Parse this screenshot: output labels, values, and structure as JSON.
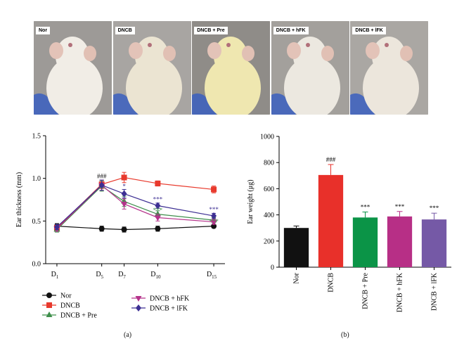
{
  "photos": [
    {
      "label": "Nor",
      "bg": "#9d9a97",
      "fur": "#f1ede6"
    },
    {
      "label": "DNCB",
      "bg": "#a8a5a2",
      "fur": "#ebe4d2"
    },
    {
      "label": "DNCB + Pre",
      "bg": "#8f8c88",
      "fur": "#efe7b0"
    },
    {
      "label": "DNCB + hFK",
      "bg": "#a3a09c",
      "fur": "#ece8e0"
    },
    {
      "label": "DNCB + lFK",
      "bg": "#aaa7a3",
      "fur": "#ece6dc"
    }
  ],
  "chart_data": [
    {
      "type": "line",
      "panel": "(a)",
      "xlabel": "",
      "ylabel": "Ear thickness (mm)",
      "ylim": [
        0.0,
        1.5
      ],
      "yticks": [
        "0.0",
        "0.5",
        "1.0",
        "1.5"
      ],
      "x": [
        1,
        5,
        7,
        10,
        15
      ],
      "xticks": [
        {
          "main": "D",
          "sub": "1"
        },
        {
          "main": "D",
          "sub": "5"
        },
        {
          "main": "D",
          "sub": "7"
        },
        {
          "main": "D",
          "sub": "10"
        },
        {
          "main": "D",
          "sub": "15"
        }
      ],
      "series": [
        {
          "name": "Nor",
          "color": "#111111",
          "marker": "circle",
          "values": [
            0.44,
            0.41,
            0.4,
            0.41,
            0.44
          ],
          "err": [
            0.03,
            0.03,
            0.03,
            0.03,
            0.02
          ]
        },
        {
          "name": "DNCB",
          "color": "#e8392c",
          "marker": "square",
          "values": [
            0.42,
            0.93,
            1.01,
            0.94,
            0.87
          ],
          "err": [
            0.03,
            0.05,
            0.06,
            0.03,
            0.04
          ]
        },
        {
          "name": "DNCB + Pre",
          "color": "#3f8f4c",
          "marker": "triangle-up",
          "values": [
            0.4,
            0.91,
            0.73,
            0.58,
            0.51
          ],
          "err": [
            0.03,
            0.06,
            0.06,
            0.04,
            0.03
          ]
        },
        {
          "name": "DNCB + hFK",
          "color": "#b5338b",
          "marker": "triangle-down",
          "values": [
            0.41,
            0.92,
            0.7,
            0.54,
            0.49
          ],
          "err": [
            0.03,
            0.06,
            0.06,
            0.04,
            0.03
          ]
        },
        {
          "name": "DNCB + lFK",
          "color": "#3d2f93",
          "marker": "diamond",
          "values": [
            0.43,
            0.92,
            0.82,
            0.68,
            0.56
          ],
          "err": [
            0.03,
            0.06,
            0.05,
            0.03,
            0.03
          ]
        }
      ],
      "annotations": [
        {
          "x": 5,
          "y": 1.0,
          "text": "###",
          "color": "#111111"
        },
        {
          "x": 7,
          "y": 0.88,
          "text": "*",
          "color": "#3d2f93"
        },
        {
          "x": 10,
          "y": 0.73,
          "text": "***",
          "color": "#3d2f93"
        },
        {
          "x": 10,
          "y": 0.6,
          "text": "***",
          "color": "#3f8f4c"
        },
        {
          "x": 15,
          "y": 0.61,
          "text": "***",
          "color": "#3d2f93"
        },
        {
          "x": 15,
          "y": 0.47,
          "text": "***",
          "color": "#3f8f4c"
        }
      ]
    },
    {
      "type": "bar",
      "panel": "(b)",
      "ylabel": "Ear weight (μg)",
      "ylim": [
        0,
        1000
      ],
      "yticks": [
        "0",
        "200",
        "400",
        "600",
        "800",
        "1000"
      ],
      "categories": [
        "Nor",
        "DNCB",
        "DNCB + Pre",
        "DNCB + hFK",
        "DNCB + lFK"
      ],
      "values": [
        300,
        705,
        380,
        388,
        365
      ],
      "err": [
        15,
        80,
        42,
        38,
        48
      ],
      "colors": [
        "#111111",
        "#e8302a",
        "#0b9447",
        "#b72f86",
        "#7559a6"
      ],
      "annotations": [
        "",
        "###",
        "***",
        "***",
        "***"
      ]
    }
  ]
}
